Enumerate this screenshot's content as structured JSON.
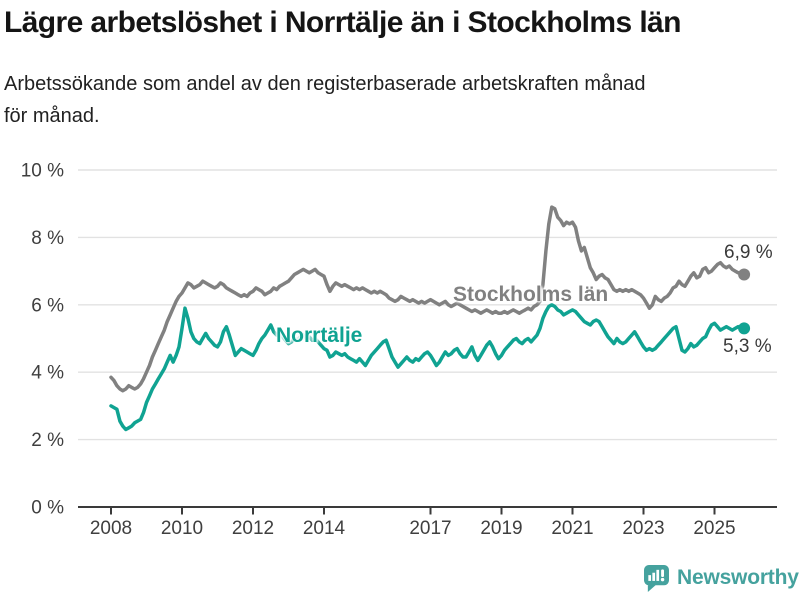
{
  "chart_data": {
    "type": "line",
    "title": "Lägre arbetslöshet i Norrtälje än i Stockholms län",
    "subtitle_line1": "Arbetssökande som andel av den registerbaserade arbetskraften månad",
    "subtitle_line2": "för månad.",
    "ylabel": "",
    "xlabel": "",
    "ylim": [
      0,
      10
    ],
    "grid": true,
    "x_start": "2008-01",
    "x_end": "2025-11",
    "x_frequency": "monthly",
    "y_ticks": [
      {
        "v": 0,
        "label": "0 %"
      },
      {
        "v": 2,
        "label": "2 %"
      },
      {
        "v": 4,
        "label": "4 %"
      },
      {
        "v": 6,
        "label": "6 %"
      },
      {
        "v": 8,
        "label": "8 %"
      },
      {
        "v": 10,
        "label": "10 %"
      }
    ],
    "x_ticks": [
      {
        "year": 2008,
        "label": "2008"
      },
      {
        "year": 2010,
        "label": "2010"
      },
      {
        "year": 2012,
        "label": "2012"
      },
      {
        "year": 2014,
        "label": "2014"
      },
      {
        "year": 2017,
        "label": "2017"
      },
      {
        "year": 2019,
        "label": "2019"
      },
      {
        "year": 2021,
        "label": "2021"
      },
      {
        "year": 2023,
        "label": "2023"
      },
      {
        "year": 2025,
        "label": "2025"
      }
    ],
    "series": [
      {
        "name": "Stockholms län",
        "color": "#818181",
        "end_label": "6,9 %",
        "end_value": 6.9,
        "values": [
          3.85,
          3.75,
          3.6,
          3.5,
          3.45,
          3.5,
          3.6,
          3.55,
          3.5,
          3.55,
          3.65,
          3.8,
          4.0,
          4.2,
          4.45,
          4.65,
          4.85,
          5.05,
          5.25,
          5.5,
          5.7,
          5.9,
          6.1,
          6.25,
          6.35,
          6.5,
          6.65,
          6.6,
          6.5,
          6.55,
          6.6,
          6.7,
          6.65,
          6.6,
          6.55,
          6.5,
          6.55,
          6.65,
          6.6,
          6.5,
          6.45,
          6.4,
          6.35,
          6.3,
          6.25,
          6.3,
          6.25,
          6.35,
          6.4,
          6.5,
          6.45,
          6.4,
          6.3,
          6.35,
          6.4,
          6.5,
          6.45,
          6.55,
          6.6,
          6.65,
          6.7,
          6.8,
          6.9,
          6.95,
          7.0,
          7.05,
          7.0,
          6.95,
          7.0,
          7.05,
          6.95,
          6.9,
          6.85,
          6.6,
          6.4,
          6.55,
          6.65,
          6.6,
          6.55,
          6.6,
          6.55,
          6.5,
          6.45,
          6.5,
          6.45,
          6.5,
          6.45,
          6.4,
          6.35,
          6.4,
          6.35,
          6.4,
          6.35,
          6.3,
          6.2,
          6.15,
          6.1,
          6.15,
          6.25,
          6.2,
          6.15,
          6.1,
          6.15,
          6.1,
          6.05,
          6.1,
          6.05,
          6.1,
          6.15,
          6.1,
          6.05,
          6.0,
          6.05,
          6.1,
          6.0,
          5.95,
          6.0,
          6.05,
          6.0,
          5.95,
          5.9,
          5.85,
          5.8,
          5.85,
          5.8,
          5.75,
          5.8,
          5.85,
          5.8,
          5.75,
          5.8,
          5.75,
          5.75,
          5.8,
          5.75,
          5.8,
          5.85,
          5.8,
          5.75,
          5.8,
          5.85,
          5.9,
          5.85,
          5.95,
          6.0,
          6.1,
          6.6,
          7.6,
          8.4,
          8.9,
          8.85,
          8.6,
          8.5,
          8.35,
          8.45,
          8.4,
          8.45,
          8.3,
          7.9,
          7.6,
          7.7,
          7.4,
          7.1,
          6.95,
          6.75,
          6.85,
          6.9,
          6.8,
          6.75,
          6.6,
          6.45,
          6.4,
          6.45,
          6.4,
          6.45,
          6.4,
          6.45,
          6.4,
          6.35,
          6.3,
          6.2,
          6.05,
          5.9,
          6.0,
          6.25,
          6.15,
          6.1,
          6.2,
          6.25,
          6.35,
          6.5,
          6.55,
          6.7,
          6.6,
          6.55,
          6.7,
          6.85,
          6.95,
          6.8,
          6.85,
          7.05,
          7.1,
          6.95,
          7.0,
          7.1,
          7.2,
          7.25,
          7.15,
          7.1,
          7.15,
          7.05,
          7.0,
          6.95,
          6.95,
          6.9
        ]
      },
      {
        "name": "Norrtälje",
        "color": "#10a392",
        "end_label": "5,3 %",
        "end_value": 5.3,
        "values": [
          3.0,
          2.95,
          2.9,
          2.55,
          2.4,
          2.3,
          2.35,
          2.4,
          2.5,
          2.55,
          2.6,
          2.8,
          3.1,
          3.3,
          3.5,
          3.65,
          3.8,
          3.95,
          4.1,
          4.3,
          4.5,
          4.3,
          4.5,
          4.75,
          5.3,
          5.9,
          5.6,
          5.2,
          5.0,
          4.9,
          4.85,
          5.0,
          5.15,
          5.0,
          4.9,
          4.8,
          4.75,
          4.9,
          5.2,
          5.35,
          5.1,
          4.8,
          4.5,
          4.6,
          4.7,
          4.65,
          4.6,
          4.55,
          4.5,
          4.65,
          4.85,
          5.0,
          5.1,
          5.25,
          5.4,
          5.2,
          5.1,
          5.15,
          5.05,
          4.95,
          4.85,
          4.9,
          5.0,
          4.95,
          5.05,
          5.1,
          5.0,
          5.05,
          4.95,
          5.0,
          4.9,
          4.8,
          4.7,
          4.65,
          4.45,
          4.5,
          4.6,
          4.55,
          4.5,
          4.55,
          4.45,
          4.4,
          4.35,
          4.3,
          4.4,
          4.3,
          4.2,
          4.35,
          4.5,
          4.6,
          4.7,
          4.8,
          4.9,
          4.95,
          4.7,
          4.45,
          4.3,
          4.15,
          4.25,
          4.35,
          4.45,
          4.35,
          4.3,
          4.4,
          4.35,
          4.45,
          4.55,
          4.6,
          4.5,
          4.35,
          4.2,
          4.3,
          4.45,
          4.6,
          4.5,
          4.55,
          4.65,
          4.7,
          4.55,
          4.45,
          4.45,
          4.6,
          4.75,
          4.5,
          4.35,
          4.5,
          4.65,
          4.8,
          4.9,
          4.75,
          4.55,
          4.4,
          4.5,
          4.65,
          4.75,
          4.85,
          4.95,
          5.0,
          4.9,
          4.85,
          4.95,
          5.0,
          4.9,
          5.0,
          5.1,
          5.3,
          5.6,
          5.8,
          5.95,
          6.0,
          5.95,
          5.85,
          5.8,
          5.7,
          5.75,
          5.8,
          5.85,
          5.8,
          5.7,
          5.6,
          5.5,
          5.45,
          5.4,
          5.5,
          5.55,
          5.5,
          5.35,
          5.2,
          5.05,
          4.95,
          4.85,
          5.0,
          4.9,
          4.85,
          4.9,
          5.0,
          5.1,
          5.2,
          5.05,
          4.9,
          4.75,
          4.65,
          4.7,
          4.65,
          4.7,
          4.8,
          4.9,
          5.0,
          5.1,
          5.2,
          5.3,
          5.35,
          5.0,
          4.65,
          4.6,
          4.7,
          4.85,
          4.75,
          4.8,
          4.9,
          5.0,
          5.05,
          5.25,
          5.4,
          5.45,
          5.35,
          5.25,
          5.3,
          5.35,
          5.3,
          5.25,
          5.3,
          5.35,
          5.3,
          5.3
        ]
      }
    ],
    "legend_position": "inline-labels"
  },
  "footer": {
    "brand": "Newsworthy",
    "brand_color": "#45a29e"
  }
}
